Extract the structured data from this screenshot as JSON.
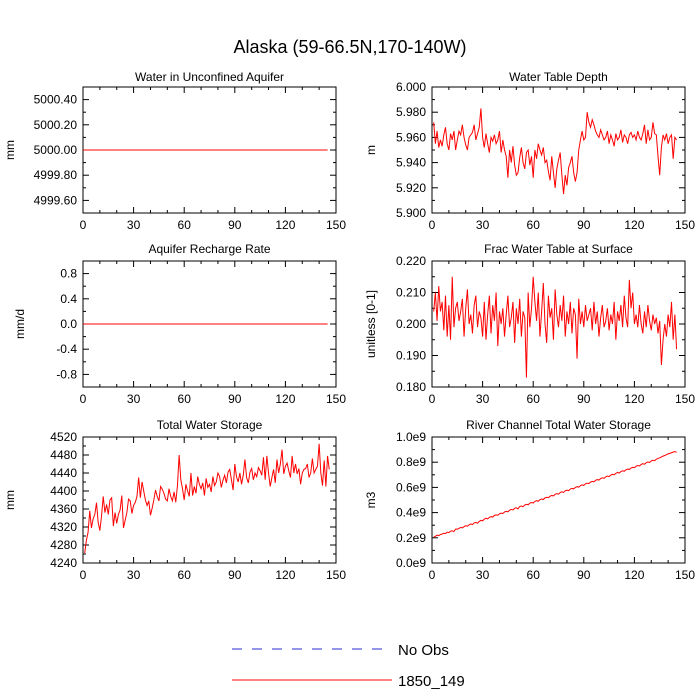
{
  "page_title": "Alaska (59-66.5N,170-140W)",
  "colors": {
    "model": "#ff0000",
    "obs": "#2b2bd6",
    "axis": "#000000"
  },
  "legend": [
    {
      "label": "No Obs",
      "style": "dashed",
      "color": "#2b2bd6"
    },
    {
      "label": "1850_149",
      "style": "solid",
      "color": "#ff0000"
    }
  ],
  "chart_data": [
    {
      "type": "line",
      "title": "Water in Unconfined Aquifer",
      "ylabel": "mm",
      "xlabel": "",
      "xlim": [
        0,
        150
      ],
      "ylim": [
        4999.5,
        5000.5
      ],
      "xticks": [
        0,
        30,
        60,
        90,
        120,
        150
      ],
      "xtick_labels": [
        "0",
        "30",
        "60",
        "90",
        "120",
        "150"
      ],
      "yticks": [
        4999.6,
        4999.8,
        5000.0,
        5000.2,
        5000.4
      ],
      "ytick_labels": [
        "4999.60",
        "4999.80",
        "5000.00",
        "5000.20",
        "5000.40"
      ],
      "series": [
        {
          "name": "1850_149",
          "x": [
            0,
            145
          ],
          "values": [
            5000.0,
            5000.0
          ]
        }
      ]
    },
    {
      "type": "line",
      "title": "Water Table Depth",
      "ylabel": "m",
      "xlabel": "",
      "xlim": [
        0,
        150
      ],
      "ylim": [
        5.9,
        6.0
      ],
      "xticks": [
        0,
        30,
        60,
        90,
        120,
        150
      ],
      "xtick_labels": [
        "0",
        "30",
        "60",
        "90",
        "120",
        "150"
      ],
      "yticks": [
        5.9,
        5.92,
        5.94,
        5.96,
        5.98,
        6.0
      ],
      "ytick_labels": [
        "5.900",
        "5.920",
        "5.940",
        "5.960",
        "5.980",
        "6.000"
      ],
      "series": [
        {
          "name": "1850_149",
          "x0": 1,
          "values": [
            5.972,
            5.955,
            5.965,
            5.952,
            5.958,
            5.953,
            5.962,
            5.968,
            5.955,
            5.95,
            5.963,
            5.958,
            5.965,
            5.95,
            5.958,
            5.965,
            5.962,
            5.97,
            5.96,
            5.954,
            5.95,
            5.96,
            5.962,
            5.964,
            5.97,
            5.958,
            5.963,
            5.968,
            5.983,
            5.96,
            5.952,
            5.963,
            5.955,
            5.948,
            5.96,
            5.957,
            5.962,
            5.955,
            5.958,
            5.965,
            5.948,
            5.958,
            5.95,
            5.945,
            5.928,
            5.95,
            5.94,
            5.953,
            5.938,
            5.93,
            5.932,
            5.944,
            5.952,
            5.94,
            5.935,
            5.948,
            5.95,
            5.938,
            5.945,
            5.928,
            5.95,
            5.943,
            5.955,
            5.95,
            5.946,
            5.952,
            5.94,
            5.942,
            5.933,
            5.926,
            5.945,
            5.932,
            5.92,
            5.935,
            5.942,
            5.948,
            5.93,
            5.915,
            5.93,
            5.922,
            5.936,
            5.94,
            5.945,
            5.932,
            5.925,
            5.932,
            5.95,
            5.958,
            5.965,
            5.958,
            5.96,
            5.98,
            5.972,
            5.968,
            5.974,
            5.97,
            5.965,
            5.962,
            5.96,
            5.966,
            5.962,
            5.958,
            5.96,
            5.965,
            5.955,
            5.962,
            5.958,
            5.953,
            5.963,
            5.958,
            5.96,
            5.966,
            5.956,
            5.962,
            5.96,
            5.955,
            5.962,
            5.964,
            5.96,
            5.962,
            5.958,
            5.965,
            5.96,
            5.958,
            5.963,
            5.97,
            5.955,
            5.966,
            5.958,
            5.96,
            5.972,
            5.963,
            5.962,
            5.945,
            5.93,
            5.952,
            5.962,
            5.958,
            5.963,
            5.955,
            5.96,
            5.962,
            5.943,
            5.96,
            5.958
          ]
        }
      ]
    },
    {
      "type": "line",
      "title": "Aquifer Recharge Rate",
      "ylabel": "mm/d",
      "xlabel": "",
      "xlim": [
        0,
        150
      ],
      "ylim": [
        -1.0,
        1.0
      ],
      "xticks": [
        0,
        30,
        60,
        90,
        120,
        150
      ],
      "xtick_labels": [
        "0",
        "30",
        "60",
        "90",
        "120",
        "150"
      ],
      "yticks": [
        -0.8,
        -0.4,
        0.0,
        0.4,
        0.8
      ],
      "ytick_labels": [
        "-0.8",
        "-0.4",
        "0.0",
        "0.4",
        "0.8"
      ],
      "series": [
        {
          "name": "1850_149",
          "x": [
            0,
            145
          ],
          "values": [
            0.0,
            0.0
          ]
        }
      ]
    },
    {
      "type": "line",
      "title": "Frac Water Table at Surface",
      "ylabel": "unitless [0-1]",
      "xlabel": "",
      "xlim": [
        0,
        150
      ],
      "ylim": [
        0.18,
        0.22
      ],
      "xticks": [
        0,
        30,
        60,
        90,
        120,
        150
      ],
      "xtick_labels": [
        "0",
        "30",
        "60",
        "90",
        "120",
        "150"
      ],
      "yticks": [
        0.18,
        0.19,
        0.2,
        0.21,
        0.22
      ],
      "ytick_labels": [
        "0.180",
        "0.190",
        "0.200",
        "0.210",
        "0.220"
      ],
      "series": [
        {
          "name": "1850_149",
          "x0": 1,
          "values": [
            0.204,
            0.21,
            0.201,
            0.212,
            0.204,
            0.207,
            0.198,
            0.209,
            0.196,
            0.206,
            0.195,
            0.215,
            0.199,
            0.205,
            0.207,
            0.201,
            0.204,
            0.208,
            0.196,
            0.205,
            0.211,
            0.2,
            0.203,
            0.197,
            0.206,
            0.209,
            0.199,
            0.204,
            0.202,
            0.196,
            0.207,
            0.195,
            0.203,
            0.209,
            0.197,
            0.206,
            0.201,
            0.21,
            0.193,
            0.204,
            0.2,
            0.205,
            0.196,
            0.203,
            0.209,
            0.199,
            0.202,
            0.207,
            0.194,
            0.205,
            0.2,
            0.208,
            0.196,
            0.204,
            0.202,
            0.183,
            0.21,
            0.199,
            0.205,
            0.215,
            0.207,
            0.201,
            0.21,
            0.196,
            0.204,
            0.213,
            0.2,
            0.194,
            0.209,
            0.202,
            0.205,
            0.195,
            0.211,
            0.203,
            0.199,
            0.206,
            0.201,
            0.209,
            0.196,
            0.204,
            0.2,
            0.207,
            0.197,
            0.205,
            0.203,
            0.189,
            0.208,
            0.2,
            0.204,
            0.199,
            0.206,
            0.201,
            0.203,
            0.205,
            0.198,
            0.207,
            0.2,
            0.204,
            0.196,
            0.202,
            0.206,
            0.199,
            0.201,
            0.205,
            0.198,
            0.203,
            0.2,
            0.207,
            0.195,
            0.204,
            0.201,
            0.206,
            0.199,
            0.209,
            0.202,
            0.199,
            0.214,
            0.205,
            0.21,
            0.2,
            0.203,
            0.199,
            0.206,
            0.2,
            0.197,
            0.204,
            0.199,
            0.206,
            0.201,
            0.198,
            0.203,
            0.2,
            0.202,
            0.197,
            0.201,
            0.187,
            0.195,
            0.2,
            0.196,
            0.203,
            0.199,
            0.207,
            0.195,
            0.203,
            0.192
          ]
        }
      ]
    },
    {
      "type": "line",
      "title": "Total Water Storage",
      "ylabel": "mm",
      "xlabel": "",
      "xlim": [
        0,
        150
      ],
      "ylim": [
        4240,
        4520
      ],
      "xticks": [
        0,
        30,
        60,
        90,
        120,
        150
      ],
      "xtick_labels": [
        "0",
        "30",
        "60",
        "90",
        "120",
        "150"
      ],
      "yticks": [
        4240,
        4280,
        4320,
        4360,
        4400,
        4440,
        4480,
        4520
      ],
      "ytick_labels": [
        "4240",
        "4280",
        "4320",
        "4360",
        "4400",
        "4440",
        "4480",
        "4520"
      ],
      "series": [
        {
          "name": "1850_149",
          "x0": 1,
          "values": [
            4262,
            4290,
            4308,
            4356,
            4318,
            4338,
            4348,
            4374,
            4330,
            4312,
            4345,
            4388,
            4352,
            4370,
            4348,
            4380,
            4385,
            4322,
            4352,
            4328,
            4348,
            4358,
            4390,
            4318,
            4335,
            4352,
            4382,
            4378,
            4350,
            4368,
            4375,
            4388,
            4430,
            4385,
            4420,
            4400,
            4380,
            4368,
            4378,
            4346,
            4362,
            4380,
            4402,
            4388,
            4378,
            4410,
            4404,
            4395,
            4382,
            4378,
            4405,
            4388,
            4378,
            4398,
            4375,
            4412,
            4480,
            4425,
            4405,
            4380,
            4415,
            4400,
            4388,
            4440,
            4390,
            4410,
            4395,
            4432,
            4415,
            4405,
            4418,
            4390,
            4428,
            4408,
            4415,
            4398,
            4432,
            4412,
            4420,
            4440,
            4432,
            4408,
            4424,
            4435,
            4418,
            4442,
            4448,
            4425,
            4402,
            4460,
            4432,
            4420,
            4440,
            4415,
            4435,
            4470,
            4430,
            4418,
            4442,
            4450,
            4425,
            4440,
            4432,
            4452,
            4445,
            4435,
            4475,
            4425,
            4478,
            4440,
            4410,
            4430,
            4448,
            4418,
            4470,
            4440,
            4460,
            4492,
            4438,
            4455,
            4462,
            4445,
            4430,
            4478,
            4440,
            4460,
            4438,
            4450,
            4415,
            4440,
            4448,
            4450,
            4460,
            4430,
            4440,
            4472,
            4440,
            4448,
            4455,
            4505,
            4440,
            4412,
            4468,
            4410,
            4478,
            4448
          ]
        }
      ]
    },
    {
      "type": "line",
      "title": "River Channel Total Water Storage",
      "ylabel": "m3",
      "xlabel": "",
      "xlim": [
        0,
        150
      ],
      "ylim": [
        0.0,
        1.0
      ],
      "xticks": [
        0,
        30,
        60,
        90,
        120,
        150
      ],
      "xtick_labels": [
        "0",
        "30",
        "60",
        "90",
        "120",
        "150"
      ],
      "yticks": [
        0.0,
        0.2,
        0.4,
        0.6,
        0.8,
        1.0
      ],
      "ytick_labels": [
        "0.0e9",
        "0.2e9",
        "0.4e9",
        "0.6e9",
        "0.8e9",
        "1.0e9"
      ],
      "series": [
        {
          "name": "1850_149",
          "x0": 1,
          "values": [
            0.205,
            0.212,
            0.221,
            0.217,
            0.226,
            0.23,
            0.236,
            0.233,
            0.245,
            0.241,
            0.252,
            0.256,
            0.249,
            0.27,
            0.268,
            0.275,
            0.282,
            0.279,
            0.288,
            0.296,
            0.292,
            0.303,
            0.31,
            0.305,
            0.318,
            0.322,
            0.315,
            0.33,
            0.338,
            0.335,
            0.348,
            0.356,
            0.35,
            0.362,
            0.369,
            0.364,
            0.378,
            0.382,
            0.379,
            0.39,
            0.396,
            0.393,
            0.405,
            0.41,
            0.406,
            0.419,
            0.425,
            0.421,
            0.434,
            0.438,
            0.43,
            0.448,
            0.452,
            0.447,
            0.46,
            0.466,
            0.462,
            0.475,
            0.48,
            0.476,
            0.489,
            0.495,
            0.49,
            0.503,
            0.508,
            0.504,
            0.517,
            0.522,
            0.518,
            0.53,
            0.536,
            0.532,
            0.545,
            0.55,
            0.546,
            0.559,
            0.565,
            0.56,
            0.573,
            0.578,
            0.574,
            0.587,
            0.592,
            0.588,
            0.6,
            0.606,
            0.602,
            0.614,
            0.62,
            0.616,
            0.629,
            0.634,
            0.63,
            0.642,
            0.648,
            0.644,
            0.656,
            0.662,
            0.658,
            0.67,
            0.676,
            0.672,
            0.684,
            0.69,
            0.686,
            0.698,
            0.704,
            0.7,
            0.712,
            0.718,
            0.714,
            0.726,
            0.732,
            0.728,
            0.74,
            0.746,
            0.742,
            0.754,
            0.76,
            0.756,
            0.768,
            0.774,
            0.77,
            0.782,
            0.788,
            0.784,
            0.796,
            0.802,
            0.798,
            0.81,
            0.816,
            0.812,
            0.824,
            0.83,
            0.835,
            0.842,
            0.848,
            0.853,
            0.86,
            0.866,
            0.87,
            0.875,
            0.88,
            0.885,
            0.878
          ]
        }
      ]
    }
  ]
}
